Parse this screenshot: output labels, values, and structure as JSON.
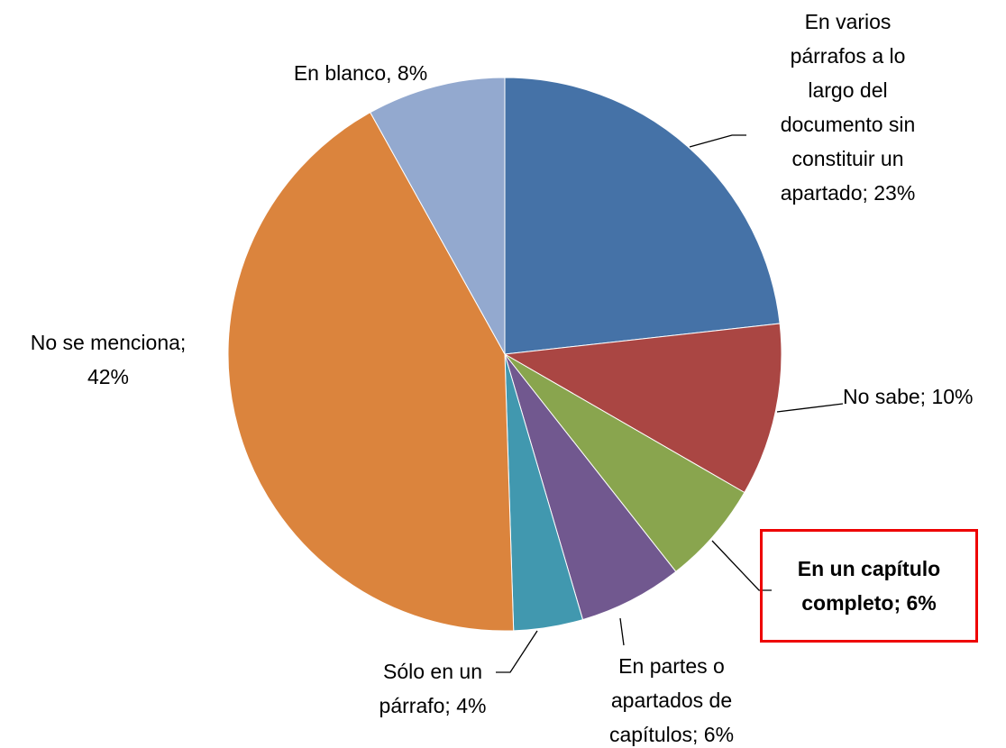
{
  "chart_data": {
    "type": "pie",
    "values": [
      23,
      10,
      6,
      6,
      4,
      42,
      8
    ],
    "value_labels": [
      "En varios párrafos a lo largo del documento sin constituir un apartado; 23%",
      "No sabe; 10%",
      "En un capítulo completo; 6%",
      "En partes o apartados de capítulos; 6%",
      "Sólo en un párrafo; 4%",
      "No se menciona; 42%",
      "En blanco, 8%"
    ],
    "colors": [
      "#4572a7",
      "#aa4643",
      "#89a54e",
      "#71588f",
      "#4198af",
      "#db843d",
      "#93a9cf"
    ]
  }
}
